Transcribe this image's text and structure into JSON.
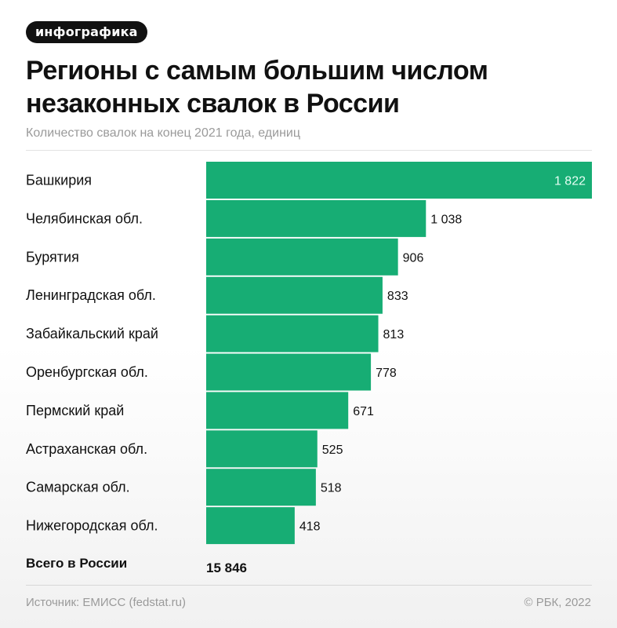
{
  "header": {
    "tag": "инфографика",
    "title": "Регионы с самым большим числом незаконных свалок в России",
    "subtitle": "Количество свалок на конец 2021 года, единиц"
  },
  "chart_data": {
    "type": "bar",
    "orientation": "horizontal",
    "title": "Регионы с самым большим числом незаконных свалок в России",
    "subtitle": "Количество свалок на конец 2021 года, единиц",
    "categories": [
      "Башкирия",
      "Челябинская обл.",
      "Бурятия",
      "Ленинградская обл.",
      "Забайкальский край",
      "Оренбургская обл.",
      "Пермский край",
      "Астраханская обл.",
      "Самарская обл.",
      "Нижегородская обл."
    ],
    "values": [
      1822,
      1038,
      906,
      833,
      813,
      778,
      671,
      525,
      518,
      418
    ],
    "value_labels": [
      "1 822",
      "1 038",
      "906",
      "833",
      "813",
      "778",
      "671",
      "525",
      "518",
      "418"
    ],
    "total_label": "Всего в России",
    "total_value": 15846,
    "total_value_label": "15 846",
    "xlim": [
      0,
      1822
    ],
    "grid": false,
    "bar_color": "#17ad74",
    "inner_label_color": "#e6fff4"
  },
  "footer": {
    "source": "Источник: ЕМИСС (fedstat.ru)",
    "copyright": "© РБК, 2022"
  }
}
